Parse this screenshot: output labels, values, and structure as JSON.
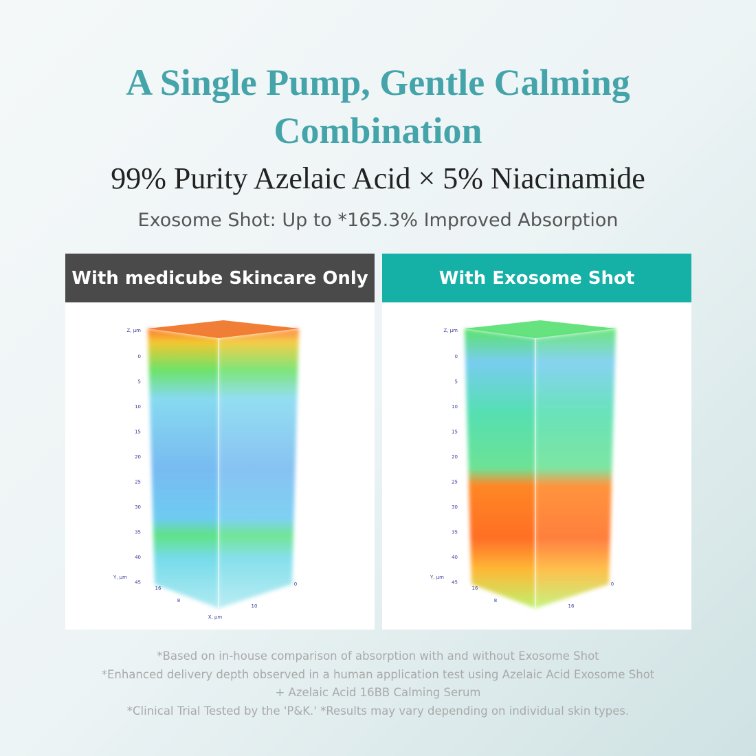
{
  "header": {
    "title_lines": [
      "A Single Pump, Gentle Calming",
      "Combination"
    ],
    "subtitle": "99% Purity Azelaic Acid × 5% Niacinamide",
    "tagline": "Exosome Shot: Up to *165.3% Improved Absorption"
  },
  "panels": [
    {
      "label": "With medicube Skincare Only",
      "z_axis_label": "Z, µm",
      "z_ticks": [
        0,
        5,
        10,
        15,
        20,
        25,
        30,
        35,
        40,
        45
      ],
      "y_axis_label": "Y, µm",
      "y_ticks": [
        16,
        8
      ],
      "x_ticks": [
        0,
        10
      ],
      "x_axis_label": "X, µm"
    },
    {
      "label": "With Exosome Shot",
      "z_axis_label": "Z, µm",
      "z_ticks": [
        0,
        5,
        10,
        15,
        20,
        25,
        30,
        35,
        40,
        45
      ],
      "y_axis_label": "Y, µm",
      "y_ticks": [
        16,
        8
      ],
      "x_ticks": [
        0,
        16
      ]
    }
  ],
  "footnotes": [
    "*Based on in-house comparison of absorption with and without Exosome Shot",
    "*Enhanced delivery depth observed in a human application test using Azelaic Acid Exosome Shot",
    "+ Azelaic Acid 16BB Calming Serum",
    "*Clinical Trial Tested by the 'P&K.' *Results may vary depending on individual skin types."
  ]
}
